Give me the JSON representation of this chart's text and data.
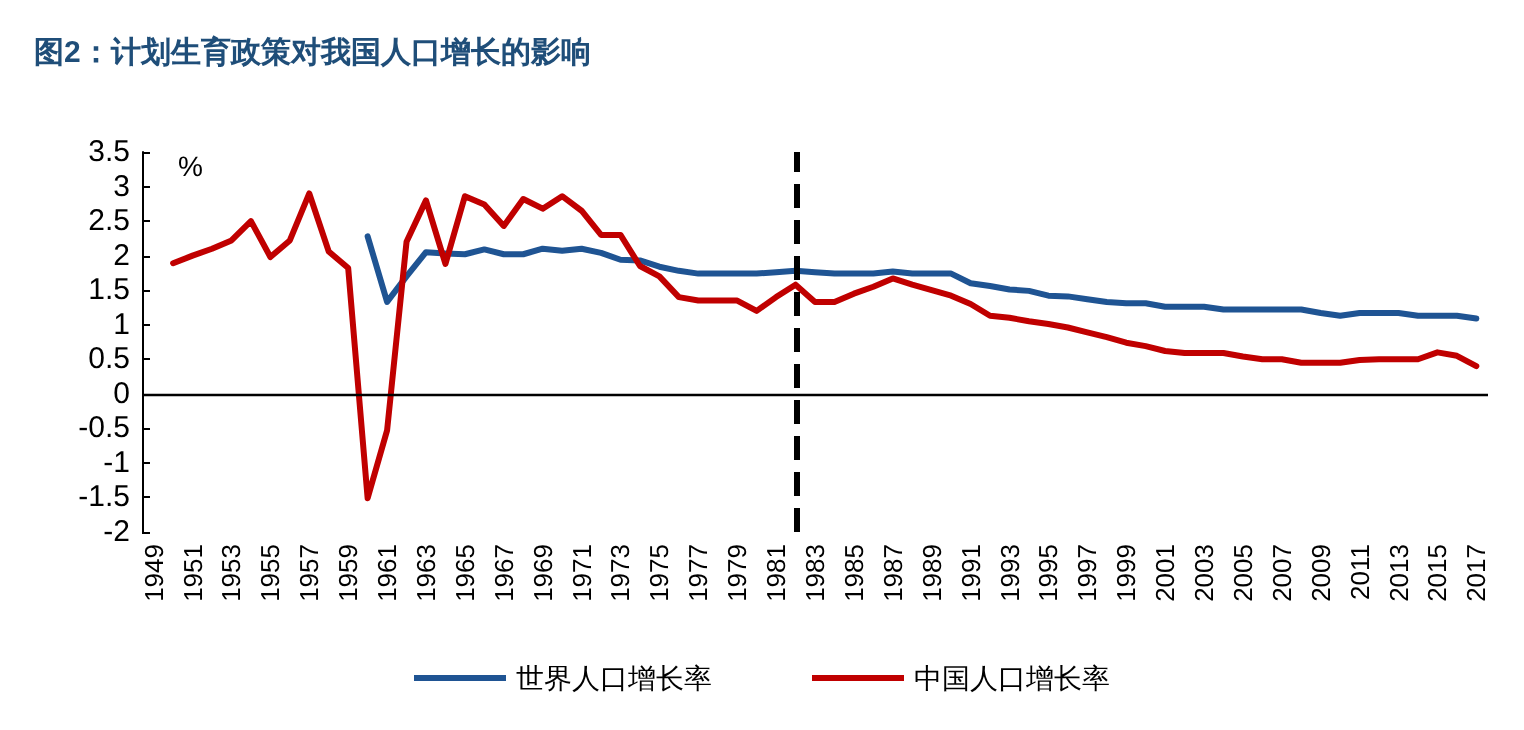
{
  "chart_data": {
    "type": "line",
    "title": "图2：计划生育政策对我国人口增长的影响",
    "ylabel": "%",
    "x": [
      1950,
      1951,
      1952,
      1953,
      1954,
      1955,
      1956,
      1957,
      1958,
      1959,
      1960,
      1961,
      1962,
      1963,
      1964,
      1965,
      1966,
      1967,
      1968,
      1969,
      1970,
      1971,
      1972,
      1973,
      1974,
      1975,
      1976,
      1977,
      1978,
      1979,
      1980,
      1981,
      1982,
      1983,
      1984,
      1985,
      1986,
      1987,
      1988,
      1989,
      1990,
      1991,
      1992,
      1993,
      1994,
      1995,
      1996,
      1997,
      1998,
      1999,
      2000,
      2001,
      2002,
      2003,
      2004,
      2005,
      2006,
      2007,
      2008,
      2009,
      2010,
      2011,
      2012,
      2013,
      2014,
      2015,
      2016,
      2017
    ],
    "xlim": [
      1948.4,
      2017.6
    ],
    "xticks": [
      1949,
      1951,
      1953,
      1955,
      1957,
      1959,
      1961,
      1963,
      1965,
      1967,
      1969,
      1971,
      1973,
      1975,
      1977,
      1979,
      1981,
      1983,
      1985,
      1987,
      1989,
      1991,
      1993,
      1995,
      1997,
      1999,
      2001,
      2003,
      2005,
      2007,
      2009,
      2011,
      2013,
      2015,
      2017
    ],
    "series": [
      {
        "name": "世界人口增长率",
        "color": "#1f5493",
        "values": [
          null,
          null,
          null,
          null,
          null,
          null,
          null,
          null,
          null,
          null,
          2.28,
          1.33,
          1.7,
          2.05,
          2.03,
          2.02,
          2.09,
          2.02,
          2.02,
          2.1,
          2.07,
          2.1,
          2.04,
          1.94,
          1.93,
          1.84,
          1.78,
          1.74,
          1.74,
          1.74,
          1.74,
          1.76,
          1.78,
          1.76,
          1.74,
          1.74,
          1.74,
          1.77,
          1.74,
          1.74,
          1.74,
          1.6,
          1.56,
          1.51,
          1.49,
          1.42,
          1.41,
          1.37,
          1.33,
          1.31,
          1.31,
          1.26,
          1.26,
          1.26,
          1.22,
          1.22,
          1.22,
          1.22,
          1.22,
          1.17,
          1.13,
          1.17,
          1.17,
          1.17,
          1.13,
          1.13,
          1.13,
          1.09
        ]
      },
      {
        "name": "中国人口增长率",
        "color": "#c00000",
        "values": [
          1.89,
          2.0,
          2.1,
          2.22,
          2.5,
          1.98,
          2.22,
          2.9,
          2.06,
          1.82,
          -1.51,
          -0.53,
          2.2,
          2.8,
          1.88,
          2.86,
          2.74,
          2.43,
          2.82,
          2.68,
          2.86,
          2.65,
          2.3,
          2.3,
          1.85,
          1.7,
          1.4,
          1.35,
          1.35,
          1.35,
          1.2,
          1.4,
          1.58,
          1.33,
          1.33,
          1.45,
          1.55,
          1.67,
          1.58,
          1.5,
          1.42,
          1.3,
          1.13,
          1.1,
          1.05,
          1.01,
          0.96,
          0.89,
          0.82,
          0.74,
          0.69,
          0.62,
          0.59,
          0.59,
          0.59,
          0.54,
          0.5,
          0.5,
          0.45,
          0.45,
          0.45,
          0.49,
          0.5,
          0.5,
          0.5,
          0.6,
          0.55,
          0.4
        ]
      }
    ],
    "ylim": [
      -2,
      3.5
    ],
    "yticks": [
      -2,
      -1.5,
      -1,
      -0.5,
      0,
      0.5,
      1,
      1.5,
      2,
      2.5,
      3,
      3.5
    ],
    "ref_lines": [
      {
        "axis": "x",
        "value": 1982,
        "color": "#000000",
        "line_style": "dashed"
      },
      {
        "axis": "y",
        "value": 0,
        "color": "#000000",
        "line_style": "solid"
      }
    ],
    "grid": false,
    "legend": "bottom",
    "marker": "none",
    "line_style": "solid"
  }
}
